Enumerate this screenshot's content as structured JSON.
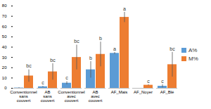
{
  "chart_data": {
    "type": "bar",
    "categories": [
      "Conventionnel sans couvert",
      "AB sans couvert",
      "Conventionnel avec couvert",
      "AB avec couvert",
      "AF_Mais",
      "AF_Noyer",
      "AF_Blé"
    ],
    "series": [
      {
        "name": "A%",
        "color": "#5b9bd5",
        "values": [
          0.3,
          1.5,
          5,
          18,
          34,
          0,
          2
        ],
        "errors": [
          0.3,
          0.5,
          1.5,
          8,
          1,
          0,
          1.5
        ],
        "letters": [
          null,
          "c",
          "c",
          "b",
          "a",
          null,
          "c"
        ]
      },
      {
        "name": "M%",
        "color": "#ed7d31",
        "values": [
          12,
          16,
          30,
          33,
          69,
          3,
          23
        ],
        "errors": [
          6,
          8,
          12,
          12,
          5,
          0.5,
          12
        ],
        "letters": [
          "bc",
          "bc",
          "bc",
          "b",
          "a",
          "c",
          "bc"
        ]
      }
    ],
    "ylim": [
      0,
      80
    ],
    "yticks": [
      0,
      10,
      20,
      30,
      40,
      50,
      60,
      70,
      80
    ],
    "grid": false,
    "legend": "right"
  }
}
